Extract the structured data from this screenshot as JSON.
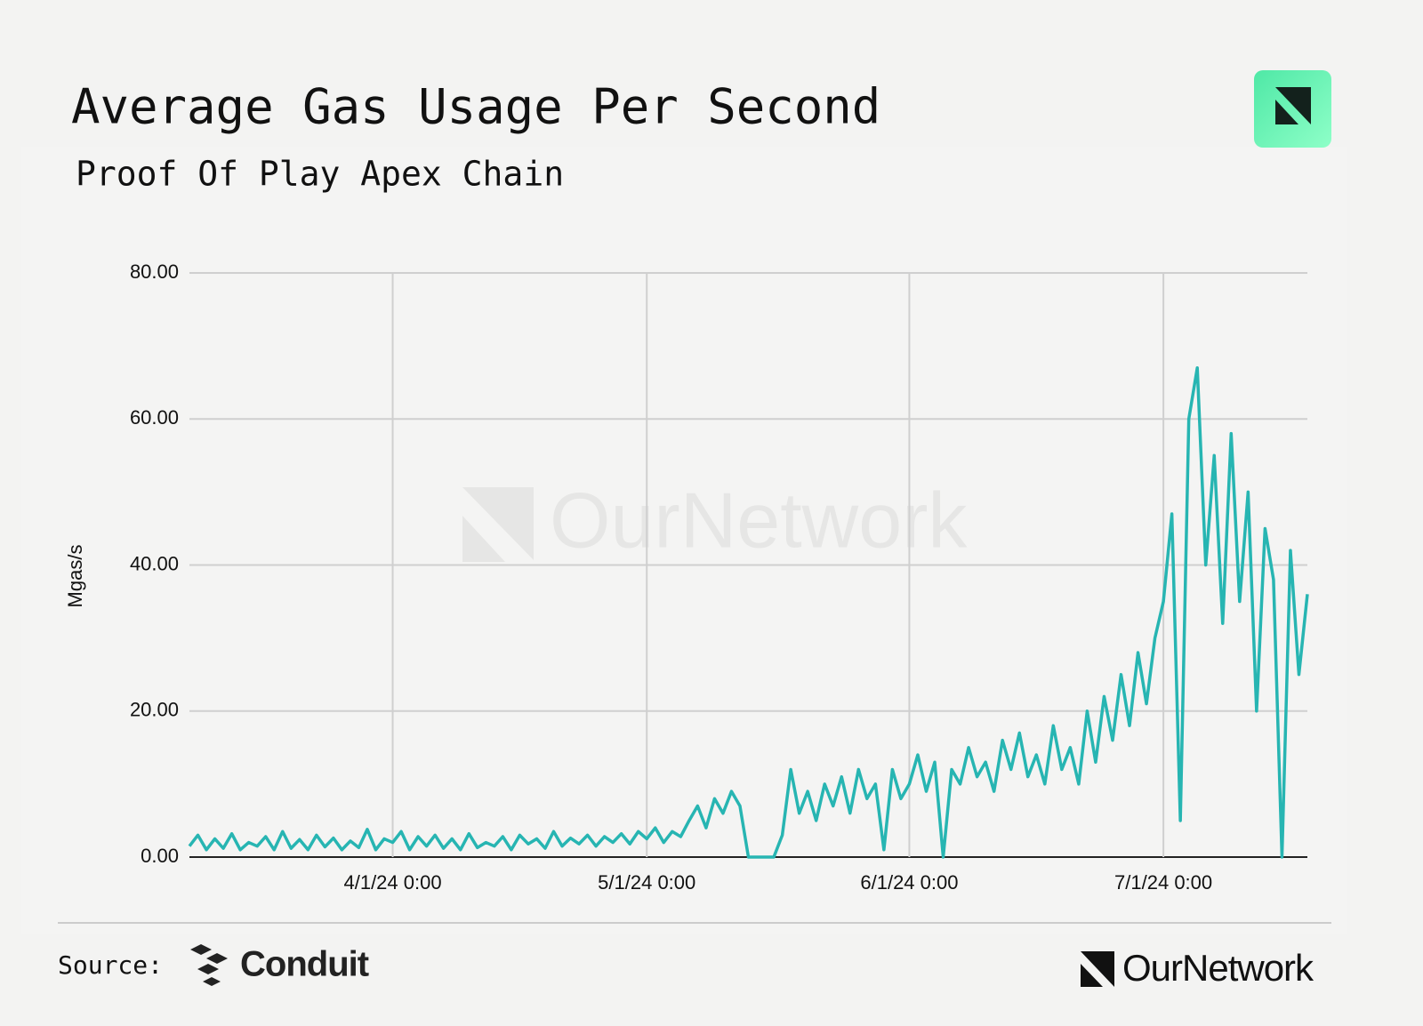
{
  "chart_data": {
    "type": "line",
    "title": "Average Gas Usage Per Second",
    "subtitle": "Proof Of Play Apex Chain",
    "y_label": "Mgas/s",
    "watermark": "OurNetwork",
    "color": "#27b5b2",
    "grid": true,
    "xlim": [
      "3/8/24 0:00",
      "7/18/24 0:00"
    ],
    "xticks": [
      "4/1/24 0:00",
      "5/1/24 0:00",
      "6/1/24 0:00",
      "7/1/24 0:00"
    ],
    "ylim": [
      0,
      80
    ],
    "yticks": [
      {
        "value": 0,
        "label": "0.00"
      },
      {
        "value": 20,
        "label": "20.00"
      },
      {
        "value": 40,
        "label": "40.00"
      },
      {
        "value": 60,
        "label": "60.00"
      },
      {
        "value": 80,
        "label": "80.00"
      }
    ],
    "x": [
      "3/8/24 0:00",
      "3/9/24 0:00",
      "3/10/24 0:00",
      "3/11/24 0:00",
      "3/12/24 0:00",
      "3/13/24 0:00",
      "3/14/24 0:00",
      "3/15/24 0:00",
      "3/16/24 0:00",
      "3/17/24 0:00",
      "3/18/24 0:00",
      "3/19/24 0:00",
      "3/20/24 0:00",
      "3/21/24 0:00",
      "3/22/24 0:00",
      "3/23/24 0:00",
      "3/24/24 0:00",
      "3/25/24 0:00",
      "3/26/24 0:00",
      "3/27/24 0:00",
      "3/28/24 0:00",
      "3/29/24 0:00",
      "3/30/24 0:00",
      "3/31/24 0:00",
      "4/1/24 0:00",
      "4/2/24 0:00",
      "4/3/24 0:00",
      "4/4/24 0:00",
      "4/5/24 0:00",
      "4/6/24 0:00",
      "4/7/24 0:00",
      "4/8/24 0:00",
      "4/9/24 0:00",
      "4/10/24 0:00",
      "4/11/24 0:00",
      "4/12/24 0:00",
      "4/13/24 0:00",
      "4/14/24 0:00",
      "4/15/24 0:00",
      "4/16/24 0:00",
      "4/17/24 0:00",
      "4/18/24 0:00",
      "4/19/24 0:00",
      "4/20/24 0:00",
      "4/21/24 0:00",
      "4/22/24 0:00",
      "4/23/24 0:00",
      "4/24/24 0:00",
      "4/25/24 0:00",
      "4/26/24 0:00",
      "4/27/24 0:00",
      "4/28/24 0:00",
      "4/29/24 0:00",
      "4/30/24 0:00",
      "5/1/24 0:00",
      "5/2/24 0:00",
      "5/3/24 0:00",
      "5/4/24 0:00",
      "5/5/24 0:00",
      "5/6/24 0:00",
      "5/7/24 0:00",
      "5/8/24 0:00",
      "5/9/24 0:00",
      "5/10/24 0:00",
      "5/11/24 0:00",
      "5/12/24 0:00",
      "5/13/24 0:00",
      "5/14/24 0:00",
      "5/15/24 0:00",
      "5/16/24 0:00",
      "5/17/24 0:00",
      "5/18/24 0:00",
      "5/19/24 0:00",
      "5/20/24 0:00",
      "5/21/24 0:00",
      "5/22/24 0:00",
      "5/23/24 0:00",
      "5/24/24 0:00",
      "5/25/24 0:00",
      "5/26/24 0:00",
      "5/27/24 0:00",
      "5/28/24 0:00",
      "5/29/24 0:00",
      "5/30/24 0:00",
      "5/31/24 0:00",
      "6/1/24 0:00",
      "6/2/24 0:00",
      "6/3/24 0:00",
      "6/4/24 0:00",
      "6/5/24 0:00",
      "6/6/24 0:00",
      "6/7/24 0:00",
      "6/8/24 0:00",
      "6/9/24 0:00",
      "6/10/24 0:00",
      "6/11/24 0:00",
      "6/12/24 0:00",
      "6/13/24 0:00",
      "6/14/24 0:00",
      "6/15/24 0:00",
      "6/16/24 0:00",
      "6/17/24 0:00",
      "6/18/24 0:00",
      "6/19/24 0:00",
      "6/20/24 0:00",
      "6/21/24 0:00",
      "6/22/24 0:00",
      "6/23/24 0:00",
      "6/24/24 0:00",
      "6/25/24 0:00",
      "6/26/24 0:00",
      "6/27/24 0:00",
      "6/28/24 0:00",
      "6/29/24 0:00",
      "6/30/24 0:00",
      "7/1/24 0:00",
      "7/2/24 0:00",
      "7/3/24 0:00",
      "7/4/24 0:00",
      "7/5/24 0:00",
      "7/6/24 0:00",
      "7/7/24 0:00",
      "7/8/24 0:00",
      "7/9/24 0:00",
      "7/10/24 0:00",
      "7/11/24 0:00",
      "7/12/24 0:00",
      "7/13/24 0:00",
      "7/14/24 0:00",
      "7/15/24 0:00",
      "7/16/24 0:00",
      "7/17/24 0:00",
      "7/18/24 0:00"
    ],
    "values": [
      1.5,
      3,
      1,
      2.5,
      1.2,
      3.2,
      1,
      2,
      1.5,
      2.8,
      1,
      3.5,
      1.2,
      2.4,
      1,
      3,
      1.4,
      2.6,
      1,
      2.2,
      1.3,
      3.8,
      1,
      2.5,
      2,
      3.5,
      1,
      2.8,
      1.5,
      3,
      1.2,
      2.5,
      1,
      3.2,
      1.3,
      2,
      1.5,
      2.8,
      1,
      3,
      1.8,
      2.5,
      1.2,
      3.5,
      1.5,
      2.6,
      1.8,
      3,
      1.5,
      2.8,
      2,
      3.2,
      1.8,
      3.5,
      2.5,
      4,
      2,
      3.5,
      2.8,
      5,
      7,
      4,
      8,
      6,
      9,
      7,
      0,
      0,
      0,
      0,
      3,
      12,
      6,
      9,
      5,
      10,
      7,
      11,
      6,
      12,
      8,
      10,
      1,
      12,
      8,
      10,
      14,
      9,
      13,
      0,
      12,
      10,
      15,
      11,
      13,
      9,
      16,
      12,
      17,
      11,
      14,
      10,
      18,
      12,
      15,
      10,
      20,
      13,
      22,
      16,
      25,
      18,
      28,
      21,
      30,
      35,
      47,
      5,
      60,
      67,
      40,
      55,
      32,
      58,
      35,
      50,
      20,
      45,
      38,
      0,
      42,
      25,
      36
    ]
  },
  "footer": {
    "source_label": "Source:",
    "source_name": "Conduit",
    "brand": "OurNetwork"
  }
}
